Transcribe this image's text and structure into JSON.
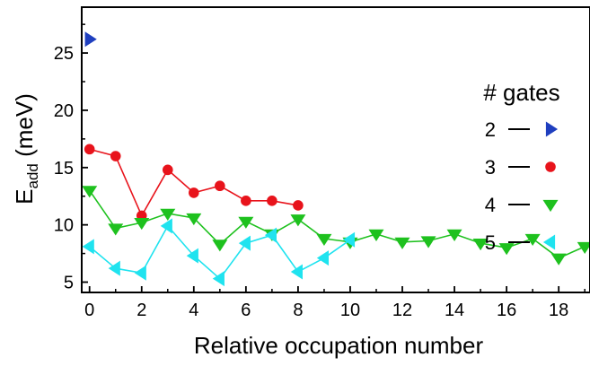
{
  "chart_data": {
    "type": "line",
    "xlabel": "Relative occupation number",
    "ylabel": "E",
    "ylabel_sub": "add",
    "ylabel_unit": " (meV)",
    "xlim": [
      -0.3,
      19.2
    ],
    "ylim": [
      4.1,
      29
    ],
    "xticks": [
      0,
      2,
      4,
      6,
      8,
      10,
      12,
      14,
      16,
      18
    ],
    "yticks": [
      5,
      10,
      15,
      20,
      25
    ],
    "grid": false,
    "legend_placement": "right",
    "legend_title": "# gates",
    "series": [
      {
        "name": "2",
        "color": "#1f3fbf",
        "marker": "triangle-right",
        "x": [
          0
        ],
        "y": [
          26.2
        ]
      },
      {
        "name": "3",
        "color": "#e8131b",
        "marker": "circle",
        "x": [
          0,
          1,
          2,
          3,
          4,
          5,
          6,
          7,
          8
        ],
        "y": [
          16.6,
          16.0,
          10.8,
          14.8,
          12.8,
          13.4,
          12.1,
          12.1,
          11.7
        ]
      },
      {
        "name": "4",
        "color": "#1ec11e",
        "marker": "triangle-down",
        "x": [
          0,
          1,
          2,
          3,
          4,
          5,
          6,
          7,
          8,
          9,
          10,
          11,
          12,
          13,
          14,
          15,
          16,
          17,
          18,
          19
        ],
        "y": [
          13.0,
          9.7,
          10.2,
          11.0,
          10.6,
          8.3,
          10.3,
          9.2,
          10.5,
          8.8,
          8.5,
          9.2,
          8.5,
          8.6,
          9.2,
          8.4,
          8.0,
          8.8,
          7.1,
          8.1
        ]
      },
      {
        "name": "5",
        "color": "#1fe3ef",
        "marker": "triangle-left",
        "x": [
          0,
          1,
          2,
          3,
          4,
          5,
          6,
          7,
          8,
          9,
          10
        ],
        "y": [
          8.1,
          6.2,
          5.8,
          9.9,
          7.3,
          5.3,
          8.4,
          9.1,
          5.9,
          7.1,
          8.7
        ]
      }
    ]
  }
}
